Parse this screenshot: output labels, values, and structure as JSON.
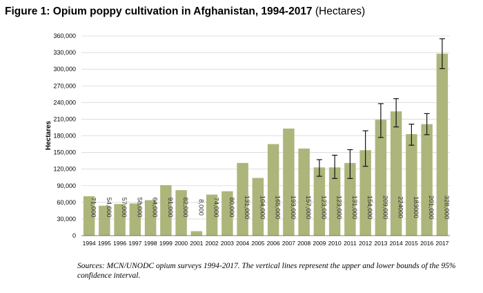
{
  "chart_data": {
    "type": "bar",
    "title": "Figure 1: Opium poppy cultivation in Afghanistan, 1994-2017",
    "title_unit": "(Hectares)",
    "ylabel": "Hectares",
    "xlabel": "",
    "ylim": [
      0,
      360000
    ],
    "yticks": [
      0,
      30000,
      60000,
      90000,
      120000,
      150000,
      180000,
      210000,
      240000,
      270000,
      300000,
      330000,
      360000
    ],
    "ytick_labels": [
      "0",
      "30,000",
      "60,000",
      "90,000",
      "120,000",
      "150,000",
      "180,000",
      "210,000",
      "240,000",
      "270,000",
      "300,000",
      "330,000",
      "360,000"
    ],
    "categories": [
      "1994",
      "1995",
      "1996",
      "1997",
      "1998",
      "1999",
      "2000",
      "2001",
      "2002",
      "2003",
      "2004",
      "2005",
      "2006",
      "2007",
      "2008",
      "2009",
      "2010",
      "2011",
      "2012",
      "2013",
      "2014",
      "2015",
      "2016",
      "2017"
    ],
    "values": [
      71000,
      54000,
      57000,
      58000,
      64000,
      91000,
      82000,
      8000,
      74000,
      80000,
      131000,
      104000,
      165000,
      193000,
      157000,
      123000,
      123000,
      131000,
      154000,
      209000,
      224000,
      183000,
      201000,
      328000
    ],
    "data_labels": [
      "71,000",
      "54,000",
      "57,000",
      "58,000",
      "64,000",
      "91,000",
      "82,000",
      "8,000",
      "74,000",
      "80,000",
      "131,000",
      "104,000",
      "165,000",
      "193,000",
      "157,000",
      "123,000",
      "123,000",
      "131,000",
      "154,000",
      "209,000",
      "224000",
      "183000",
      "201,000",
      "328,000"
    ],
    "error_bars": [
      null,
      null,
      null,
      null,
      null,
      null,
      null,
      null,
      null,
      null,
      null,
      null,
      null,
      null,
      null,
      [
        107000,
        137000
      ],
      [
        103000,
        145000
      ],
      [
        103000,
        155000
      ],
      [
        125000,
        189000
      ],
      [
        177000,
        238000
      ],
      [
        196000,
        247000
      ],
      [
        163000,
        201000
      ],
      [
        182000,
        220000
      ],
      [
        301000,
        355000
      ]
    ],
    "bar_color": "#adb57b",
    "grid": true,
    "legend": "none",
    "source_note": "Sources: MCN/UNODC opium surveys 1994-2017. The vertical lines represent the upper and lower bounds of the 95% confidence interval."
  }
}
